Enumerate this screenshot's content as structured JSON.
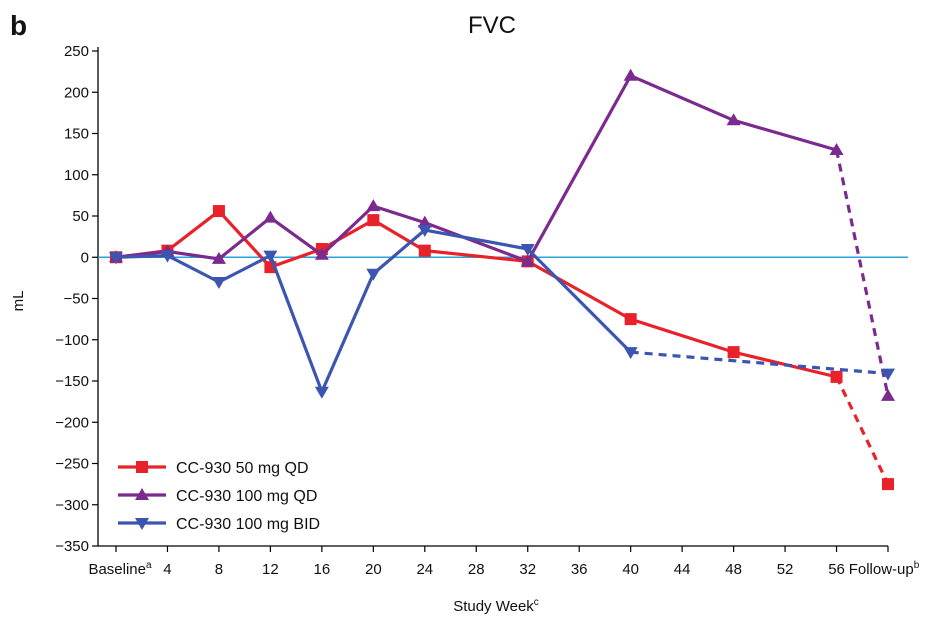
{
  "panel_label": "b",
  "chart_data": {
    "type": "line",
    "title": "FVC",
    "xlabel": "Study Week",
    "xlabel_superscript": "c",
    "ylabel": "mL",
    "ylim": [
      -350,
      250
    ],
    "yticks": [
      250,
      200,
      150,
      100,
      50,
      0,
      -50,
      -100,
      -150,
      -200,
      -250,
      -300,
      -350
    ],
    "categories": [
      "Baseline",
      "4",
      "8",
      "12",
      "16",
      "20",
      "24",
      "28",
      "32",
      "36",
      "40",
      "44",
      "48",
      "52",
      "56",
      "Follow-up"
    ],
    "category_superscripts": {
      "Baseline": "a",
      "Follow-up": "b"
    },
    "reference_line": {
      "y": 0,
      "color": "#29a3dc"
    },
    "grid": false,
    "legend_position": "bottom-left",
    "series": [
      {
        "name": "CC-930 50 mg QD",
        "color": "#e8212b",
        "marker": "square",
        "points": [
          {
            "x": "Baseline",
            "y": 0
          },
          {
            "x": "4",
            "y": 8
          },
          {
            "x": "8",
            "y": 56
          },
          {
            "x": "12",
            "y": -12
          },
          {
            "x": "16",
            "y": 10
          },
          {
            "x": "20",
            "y": 45
          },
          {
            "x": "24",
            "y": 8
          },
          {
            "x": "32",
            "y": -5
          },
          {
            "x": "40",
            "y": -75
          },
          {
            "x": "48",
            "y": -115
          },
          {
            "x": "56",
            "y": -145
          },
          {
            "x": "Follow-up",
            "y": -275,
            "dashed": true
          }
        ]
      },
      {
        "name": "CC-930 100 mg QD",
        "color": "#7b2a8e",
        "marker": "triangle-up",
        "points": [
          {
            "x": "Baseline",
            "y": 0
          },
          {
            "x": "4",
            "y": 7
          },
          {
            "x": "8",
            "y": -2
          },
          {
            "x": "12",
            "y": 48
          },
          {
            "x": "16",
            "y": 3
          },
          {
            "x": "20",
            "y": 62
          },
          {
            "x": "24",
            "y": 42
          },
          {
            "x": "32",
            "y": -5
          },
          {
            "x": "40",
            "y": 220
          },
          {
            "x": "48",
            "y": 166
          },
          {
            "x": "56",
            "y": 130
          },
          {
            "x": "Follow-up",
            "y": -168,
            "dashed": true
          }
        ]
      },
      {
        "name": "CC-930 100 mg BID",
        "color": "#3b55b0",
        "marker": "triangle-down",
        "points": [
          {
            "x": "Baseline",
            "y": 0
          },
          {
            "x": "4",
            "y": 2
          },
          {
            "x": "8",
            "y": -30
          },
          {
            "x": "12",
            "y": 2
          },
          {
            "x": "16",
            "y": -163
          },
          {
            "x": "20",
            "y": -20
          },
          {
            "x": "24",
            "y": 33
          },
          {
            "x": "32",
            "y": 10
          },
          {
            "x": "40",
            "y": -115
          },
          {
            "x": "Follow-up",
            "y": -141,
            "dashed": true
          }
        ]
      }
    ]
  }
}
